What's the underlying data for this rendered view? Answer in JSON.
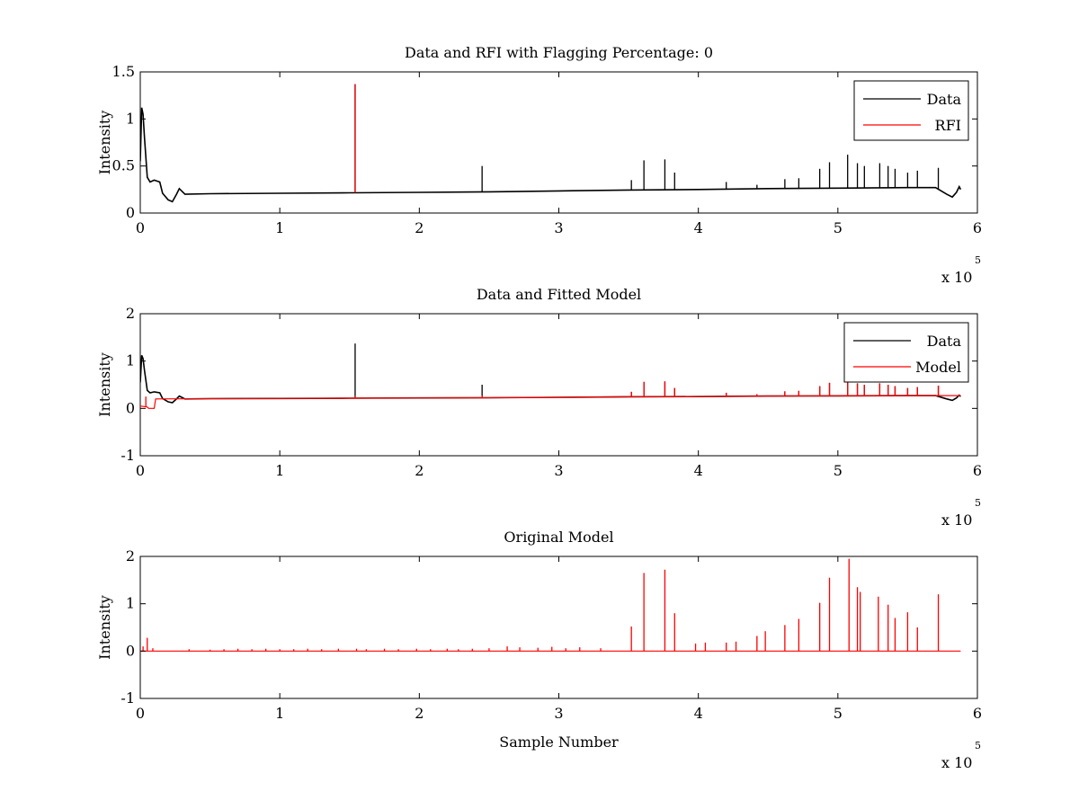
{
  "figure": {
    "background": "#ffffff",
    "plot_background": "#ffffff"
  },
  "colors": {
    "data": "#000000",
    "rfi": "#ff0000",
    "model": "#ff0000"
  },
  "chart_data": [
    {
      "type": "line",
      "title": "Data and RFI with Flagging Percentage: 0",
      "xlabel": "",
      "ylabel": "Intensity",
      "x_exponent_label": "x 10",
      "x_exponent": "5",
      "xlim": [
        0,
        6
      ],
      "ylim": [
        0,
        1.5
      ],
      "xticks": [
        0,
        1,
        2,
        3,
        4,
        5,
        6
      ],
      "xtick_labels": [
        "0",
        "1",
        "2",
        "3",
        "4",
        "5",
        "6"
      ],
      "yticks": [
        0,
        0.5,
        1,
        1.5
      ],
      "ytick_labels": [
        "0",
        "0.5",
        "1",
        "1.5"
      ],
      "legend": {
        "position": "top-right",
        "entries": [
          "Data",
          "RFI"
        ]
      },
      "series": [
        {
          "name": "Data",
          "color": "#000000",
          "baseline": [
            [
              0.0,
              0.55
            ],
            [
              0.01,
              1.12
            ],
            [
              0.02,
              1.05
            ],
            [
              0.03,
              0.8
            ],
            [
              0.05,
              0.38
            ],
            [
              0.07,
              0.33
            ],
            [
              0.1,
              0.35
            ],
            [
              0.14,
              0.33
            ],
            [
              0.16,
              0.21
            ],
            [
              0.2,
              0.14
            ],
            [
              0.23,
              0.12
            ],
            [
              0.26,
              0.2
            ],
            [
              0.28,
              0.26
            ],
            [
              0.32,
              0.2
            ],
            [
              0.5,
              0.205
            ],
            [
              1.0,
              0.21
            ],
            [
              1.5,
              0.215
            ],
            [
              2.0,
              0.22
            ],
            [
              2.5,
              0.225
            ],
            [
              3.0,
              0.235
            ],
            [
              3.5,
              0.245
            ],
            [
              4.0,
              0.25
            ],
            [
              4.5,
              0.26
            ],
            [
              5.0,
              0.265
            ],
            [
              5.5,
              0.27
            ],
            [
              5.7,
              0.27
            ],
            [
              5.78,
              0.2
            ],
            [
              5.82,
              0.17
            ],
            [
              5.85,
              0.22
            ],
            [
              5.87,
              0.28
            ],
            [
              5.88,
              0.25
            ]
          ],
          "spikes": [
            [
              1.54,
              1.37
            ],
            [
              2.45,
              0.5
            ],
            [
              3.52,
              0.35
            ],
            [
              3.61,
              0.56
            ],
            [
              3.76,
              0.57
            ],
            [
              3.83,
              0.43
            ],
            [
              4.2,
              0.33
            ],
            [
              4.42,
              0.3
            ],
            [
              4.62,
              0.36
            ],
            [
              4.72,
              0.37
            ],
            [
              4.87,
              0.47
            ],
            [
              4.94,
              0.54
            ],
            [
              5.07,
              0.62
            ],
            [
              5.14,
              0.53
            ],
            [
              5.19,
              0.5
            ],
            [
              5.3,
              0.53
            ],
            [
              5.36,
              0.5
            ],
            [
              5.41,
              0.47
            ],
            [
              5.5,
              0.43
            ],
            [
              5.57,
              0.45
            ],
            [
              5.72,
              0.48
            ]
          ]
        },
        {
          "name": "RFI",
          "color": "#ff0000",
          "baseline": [],
          "spikes": [
            [
              1.54,
              1.37
            ]
          ]
        }
      ]
    },
    {
      "type": "line",
      "title": "Data and Fitted Model",
      "xlabel": "",
      "ylabel": "Intensity",
      "x_exponent_label": "x 10",
      "x_exponent": "5",
      "xlim": [
        0,
        6
      ],
      "ylim": [
        -1,
        2
      ],
      "xticks": [
        0,
        1,
        2,
        3,
        4,
        5,
        6
      ],
      "xtick_labels": [
        "0",
        "1",
        "2",
        "3",
        "4",
        "5",
        "6"
      ],
      "yticks": [
        -1,
        0,
        1,
        2
      ],
      "ytick_labels": [
        "-1",
        "0",
        "1",
        "2"
      ],
      "legend": {
        "position": "top-right",
        "entries": [
          "Data",
          "Model"
        ]
      },
      "series": [
        {
          "name": "Data",
          "color": "#000000",
          "baseline": [
            [
              0.0,
              0.55
            ],
            [
              0.01,
              1.12
            ],
            [
              0.02,
              1.05
            ],
            [
              0.03,
              0.8
            ],
            [
              0.05,
              0.38
            ],
            [
              0.07,
              0.33
            ],
            [
              0.1,
              0.35
            ],
            [
              0.14,
              0.33
            ],
            [
              0.16,
              0.21
            ],
            [
              0.2,
              0.14
            ],
            [
              0.23,
              0.12
            ],
            [
              0.26,
              0.2
            ],
            [
              0.28,
              0.26
            ],
            [
              0.32,
              0.2
            ],
            [
              0.5,
              0.205
            ],
            [
              1.0,
              0.21
            ],
            [
              1.5,
              0.215
            ],
            [
              2.0,
              0.22
            ],
            [
              2.5,
              0.225
            ],
            [
              3.0,
              0.235
            ],
            [
              3.5,
              0.245
            ],
            [
              4.0,
              0.25
            ],
            [
              4.5,
              0.26
            ],
            [
              5.0,
              0.265
            ],
            [
              5.5,
              0.27
            ],
            [
              5.7,
              0.27
            ],
            [
              5.78,
              0.2
            ],
            [
              5.82,
              0.17
            ],
            [
              5.85,
              0.22
            ],
            [
              5.87,
              0.28
            ],
            [
              5.88,
              0.25
            ]
          ],
          "spikes": [
            [
              1.54,
              1.37
            ],
            [
              2.45,
              0.5
            ],
            [
              3.52,
              0.35
            ],
            [
              3.61,
              0.56
            ],
            [
              3.76,
              0.57
            ],
            [
              3.83,
              0.43
            ],
            [
              4.2,
              0.33
            ],
            [
              4.42,
              0.3
            ],
            [
              4.62,
              0.36
            ],
            [
              4.72,
              0.37
            ],
            [
              4.87,
              0.47
            ],
            [
              4.94,
              0.54
            ],
            [
              5.07,
              0.62
            ],
            [
              5.14,
              0.53
            ],
            [
              5.19,
              0.5
            ],
            [
              5.3,
              0.53
            ],
            [
              5.36,
              0.5
            ],
            [
              5.41,
              0.47
            ],
            [
              5.5,
              0.43
            ],
            [
              5.57,
              0.45
            ],
            [
              5.72,
              0.48
            ]
          ]
        },
        {
          "name": "Model",
          "color": "#ff0000",
          "baseline": [
            [
              0.0,
              0.05
            ],
            [
              0.05,
              0.03
            ],
            [
              0.06,
              0.0
            ],
            [
              0.1,
              0.0
            ],
            [
              0.11,
              0.2
            ],
            [
              0.5,
              0.205
            ],
            [
              1.0,
              0.21
            ],
            [
              1.5,
              0.215
            ],
            [
              2.0,
              0.22
            ],
            [
              2.5,
              0.225
            ],
            [
              3.0,
              0.235
            ],
            [
              3.5,
              0.245
            ],
            [
              4.0,
              0.25
            ],
            [
              4.5,
              0.26
            ],
            [
              5.0,
              0.265
            ],
            [
              5.5,
              0.27
            ],
            [
              5.88,
              0.27
            ]
          ],
          "spikes": [
            [
              0.04,
              0.25
            ],
            [
              1.54,
              0.26
            ],
            [
              2.45,
              0.27
            ],
            [
              3.52,
              0.35
            ],
            [
              3.61,
              0.56
            ],
            [
              3.76,
              0.57
            ],
            [
              3.83,
              0.43
            ],
            [
              4.2,
              0.33
            ],
            [
              4.42,
              0.3
            ],
            [
              4.62,
              0.36
            ],
            [
              4.72,
              0.37
            ],
            [
              4.87,
              0.47
            ],
            [
              4.94,
              0.54
            ],
            [
              5.07,
              0.6
            ],
            [
              5.14,
              0.53
            ],
            [
              5.19,
              0.5
            ],
            [
              5.3,
              0.53
            ],
            [
              5.36,
              0.5
            ],
            [
              5.41,
              0.47
            ],
            [
              5.5,
              0.43
            ],
            [
              5.57,
              0.45
            ],
            [
              5.72,
              0.48
            ]
          ]
        }
      ]
    },
    {
      "type": "line",
      "title": "Original Model",
      "xlabel": "Sample Number",
      "ylabel": "Intensity",
      "x_exponent_label": "x 10",
      "x_exponent": "5",
      "xlim": [
        0,
        6
      ],
      "ylim": [
        -1,
        2
      ],
      "xticks": [
        0,
        1,
        2,
        3,
        4,
        5,
        6
      ],
      "xtick_labels": [
        "0",
        "1",
        "2",
        "3",
        "4",
        "5",
        "6"
      ],
      "yticks": [
        -1,
        0,
        1,
        2
      ],
      "ytick_labels": [
        "-1",
        "0",
        "1",
        "2"
      ],
      "legend": null,
      "series": [
        {
          "color": "#ff0000",
          "baseline": [
            [
              0.0,
              0.0
            ],
            [
              5.88,
              0.0
            ]
          ],
          "spikes": [
            [
              0.02,
              0.1
            ],
            [
              0.05,
              0.28
            ],
            [
              0.09,
              0.06
            ],
            [
              0.35,
              0.04
            ],
            [
              0.5,
              0.03
            ],
            [
              0.6,
              0.04
            ],
            [
              0.7,
              0.05
            ],
            [
              0.8,
              0.04
            ],
            [
              0.9,
              0.05
            ],
            [
              1.0,
              0.04
            ],
            [
              1.1,
              0.04
            ],
            [
              1.2,
              0.05
            ],
            [
              1.3,
              0.04
            ],
            [
              1.42,
              0.05
            ],
            [
              1.55,
              0.05
            ],
            [
              1.62,
              0.04
            ],
            [
              1.75,
              0.05
            ],
            [
              1.85,
              0.04
            ],
            [
              1.98,
              0.05
            ],
            [
              2.08,
              0.04
            ],
            [
              2.2,
              0.05
            ],
            [
              2.28,
              0.04
            ],
            [
              2.38,
              0.05
            ],
            [
              2.5,
              0.06
            ],
            [
              2.63,
              0.1
            ],
            [
              2.72,
              0.08
            ],
            [
              2.85,
              0.07
            ],
            [
              2.95,
              0.09
            ],
            [
              3.05,
              0.06
            ],
            [
              3.15,
              0.08
            ],
            [
              3.3,
              0.06
            ],
            [
              3.52,
              0.52
            ],
            [
              3.61,
              1.65
            ],
            [
              3.76,
              1.72
            ],
            [
              3.83,
              0.8
            ],
            [
              3.98,
              0.16
            ],
            [
              4.05,
              0.18
            ],
            [
              4.2,
              0.18
            ],
            [
              4.27,
              0.2
            ],
            [
              4.42,
              0.32
            ],
            [
              4.48,
              0.42
            ],
            [
              4.62,
              0.55
            ],
            [
              4.72,
              0.68
            ],
            [
              4.87,
              1.02
            ],
            [
              4.94,
              1.55
            ],
            [
              5.08,
              1.95
            ],
            [
              5.14,
              1.35
            ],
            [
              5.16,
              1.25
            ],
            [
              5.29,
              1.15
            ],
            [
              5.36,
              0.98
            ],
            [
              5.41,
              0.7
            ],
            [
              5.5,
              0.82
            ],
            [
              5.57,
              0.5
            ],
            [
              5.72,
              1.2
            ]
          ]
        }
      ]
    }
  ]
}
